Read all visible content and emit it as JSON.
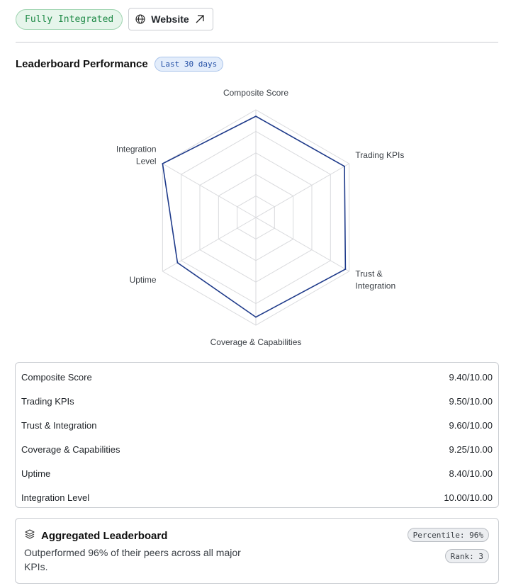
{
  "header": {
    "status_badge": "Fully Integrated",
    "website_label": "Website",
    "icons": {
      "website": "globe-icon",
      "external": "arrow-up-right-icon"
    }
  },
  "section": {
    "title": "Leaderboard Performance",
    "period_badge": "Last 30 days"
  },
  "colors": {
    "series": "#1e3a8a",
    "grid": "#d9dadd",
    "green_badge": "#1f8a47",
    "blue_badge": "#2450a6"
  },
  "chart_data": {
    "type": "radar",
    "axes": [
      "Composite Score",
      "Trading KPIs",
      "Trust & Integration",
      "Coverage & Capabilities",
      "Uptime",
      "Integration Level"
    ],
    "axis_label_lines": [
      [
        "Composite Score"
      ],
      [
        "Trading KPIs"
      ],
      [
        "Trust &",
        "Integration"
      ],
      [
        "Coverage & Capabilities"
      ],
      [
        "Uptime"
      ],
      [
        "Integration",
        "Level"
      ]
    ],
    "values": [
      9.4,
      9.5,
      9.6,
      9.25,
      8.4,
      10.0
    ],
    "max": 10,
    "rings": 5,
    "grid": true
  },
  "scores": [
    {
      "label": "Composite Score",
      "value": "9.40/10.00"
    },
    {
      "label": "Trading KPIs",
      "value": "9.50/10.00"
    },
    {
      "label": "Trust & Integration",
      "value": "9.60/10.00"
    },
    {
      "label": "Coverage & Capabilities",
      "value": "9.25/10.00"
    },
    {
      "label": "Uptime",
      "value": "8.40/10.00"
    },
    {
      "label": "Integration Level",
      "value": "10.00/10.00"
    }
  ],
  "aggregated": {
    "icon": "layers-icon",
    "title": "Aggregated Leaderboard",
    "description": "Outperformed 96% of their peers across all major KPIs.",
    "percentile": "Percentile: 96%",
    "rank": "Rank: 3"
  }
}
